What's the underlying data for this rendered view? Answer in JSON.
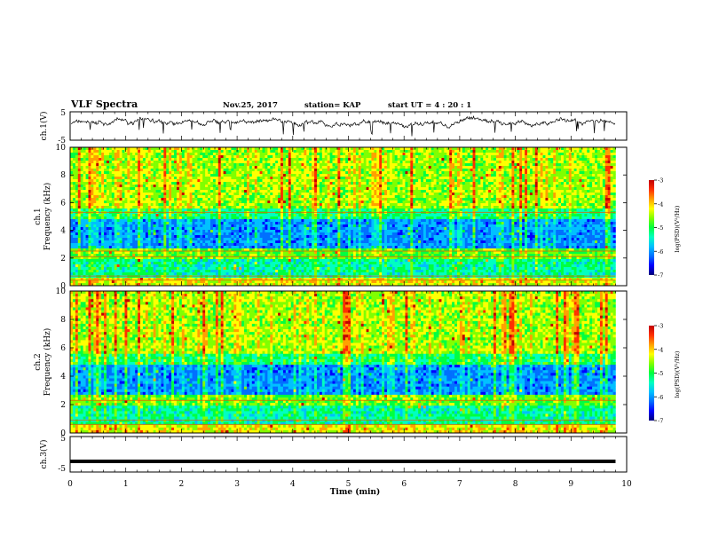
{
  "header": {
    "title": "VLF Spectra",
    "date": "Nov.25, 2017",
    "station": "station= KAP",
    "start": "start  UT  =  4 : 20 : 1"
  },
  "chart_data": [
    {
      "type": "line",
      "panel": "ch1-waveform",
      "ylabel": "ch.1(V)",
      "ylim": [
        -5,
        5
      ],
      "yticks": [
        "5",
        "-5"
      ],
      "series": [
        {
          "values_note": "noisy waveform around ~ +1 V",
          "x": [
            0,
            9.8
          ],
          "mean": 1.2
        }
      ],
      "xlim": [
        0,
        10
      ]
    },
    {
      "type": "heatmap",
      "panel": "ch1-spectrogram",
      "ylabel": "ch.1\nFrequency  (kHz)",
      "ylabel_line1": "ch.1",
      "ylabel_line2": "Frequency  (kHz)",
      "ylim": [
        0,
        10
      ],
      "yticks": [
        "0",
        "2",
        "4",
        "6",
        "8",
        "10"
      ],
      "xlim": [
        0,
        9.8
      ],
      "colorbar": {
        "label": "log(PSD)(V²/Hz)",
        "range": [
          -7,
          -3
        ],
        "ticks": [
          "-3",
          "-4",
          "-5",
          "-6",
          "-7"
        ]
      }
    },
    {
      "type": "heatmap",
      "panel": "ch2-spectrogram",
      "ylabel_line1": "ch.2",
      "ylabel_line2": "Frequency  (kHz)",
      "ylim": [
        0,
        10
      ],
      "yticks": [
        "0",
        "2",
        "4",
        "6",
        "8",
        "10"
      ],
      "xlim": [
        0,
        9.8
      ],
      "colorbar": {
        "label": "log(PSD)(V²/Hz)",
        "range": [
          -7,
          -3
        ],
        "ticks": [
          "-3",
          "-4",
          "-5",
          "-6",
          "-7"
        ]
      }
    },
    {
      "type": "line",
      "panel": "ch3-waveform",
      "ylabel": "ch.3(V)",
      "ylim": [
        -5,
        5
      ],
      "yticks": [
        "5",
        "-5"
      ],
      "series": [
        {
          "x": [
            0,
            9.8
          ],
          "values": [
            -2,
            -2
          ]
        }
      ],
      "xlim": [
        0,
        10
      ]
    }
  ],
  "x_axis": {
    "label": "Time  (min)",
    "ticks": [
      "0",
      "1",
      "2",
      "3",
      "4",
      "5",
      "6",
      "7",
      "8",
      "9",
      "10"
    ]
  },
  "colors": {
    "scale": [
      "#00007a",
      "#0000ff",
      "#0070ff",
      "#00c0ff",
      "#00ffc0",
      "#00ff40",
      "#80ff00",
      "#ffff00",
      "#ffa000",
      "#ff3000",
      "#c00000"
    ]
  }
}
